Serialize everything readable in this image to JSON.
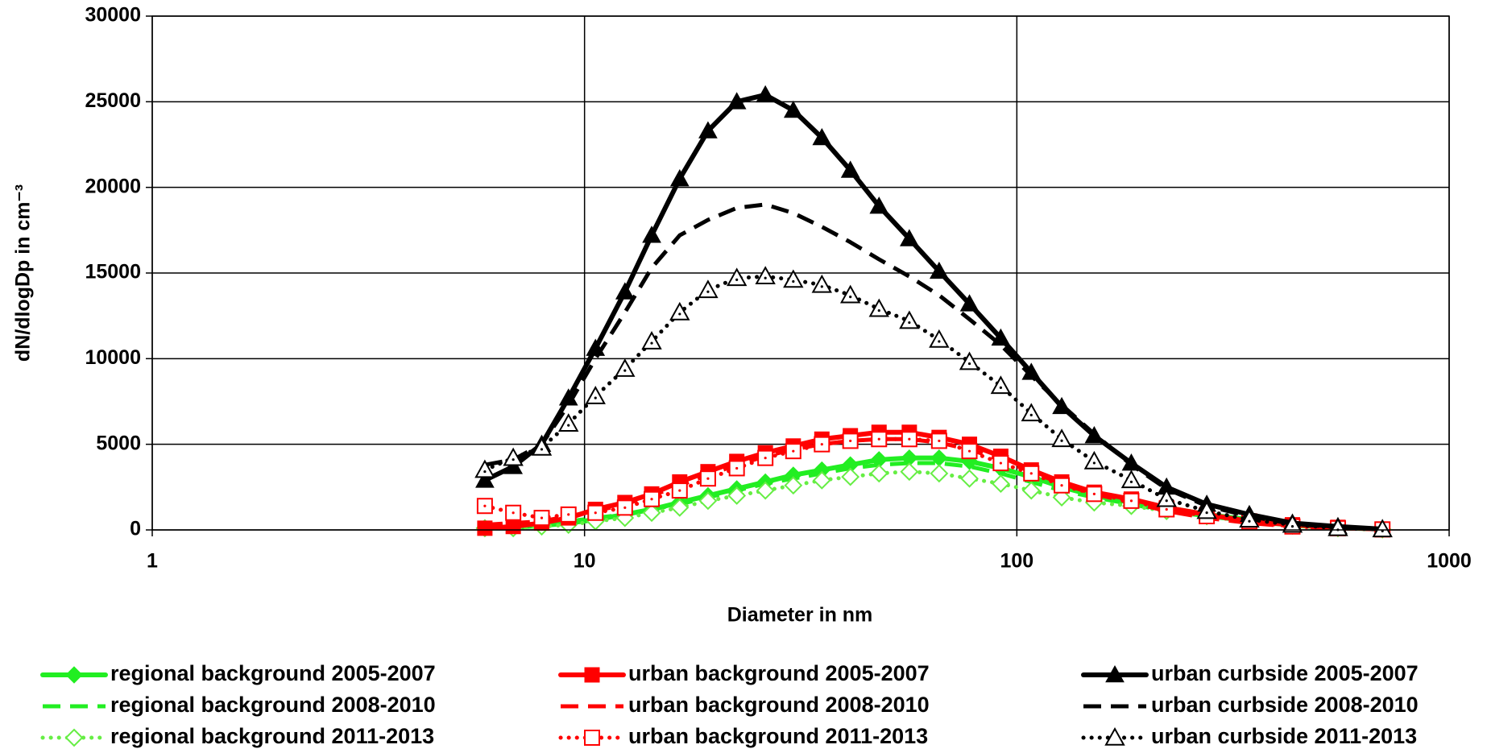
{
  "chart_data": {
    "type": "line",
    "xlabel": "Diameter in nm",
    "ylabel": "dN/dlogDp in cm⁻³",
    "xscale": "log",
    "xlim": [
      1,
      1000
    ],
    "xticks": [
      1,
      10,
      100,
      1000
    ],
    "ylim": [
      0,
      30000
    ],
    "yticks": [
      0,
      5000,
      10000,
      15000,
      20000,
      25000,
      30000
    ],
    "grid": true,
    "legend": "bottom",
    "x": [
      5.88,
      6.84,
      7.96,
      9.18,
      10.6,
      12.4,
      14.3,
      16.6,
      19.3,
      22.5,
      26.2,
      30.4,
      35.4,
      41.2,
      48.0,
      56.4,
      66.1,
      77.7,
      91.8,
      108,
      127,
      151,
      184,
      222,
      275,
      345,
      434,
      553,
      701
    ],
    "series": [
      {
        "name": "regional background 2005-2007",
        "color": "#22ee22",
        "line_style": "solid",
        "marker": "diamond",
        "marker_fill": "filled",
        "values": [
          100,
          150,
          250,
          400,
          600,
          900,
          1200,
          1600,
          2000,
          2400,
          2800,
          3200,
          3500,
          3800,
          4100,
          4200,
          4200,
          4000,
          3600,
          3100,
          2500,
          2000,
          1600,
          1300,
          900,
          600,
          300,
          150,
          50
        ]
      },
      {
        "name": "regional background 2008-2010",
        "color": "#22ee22",
        "line_style": "dashed",
        "marker": "none",
        "marker_fill": "none",
        "values": [
          300,
          300,
          300,
          500,
          700,
          900,
          1200,
          1500,
          1900,
          2300,
          2700,
          3000,
          3300,
          3600,
          3800,
          3900,
          3900,
          3700,
          3300,
          2800,
          2300,
          1900,
          1500,
          1100,
          800,
          500,
          250,
          100,
          30
        ]
      },
      {
        "name": "regional background 2011-2013",
        "color": "#66ee44",
        "line_style": "dotted",
        "marker": "diamond",
        "marker_fill": "open",
        "values": [
          100,
          100,
          200,
          300,
          500,
          700,
          1000,
          1300,
          1700,
          2000,
          2300,
          2600,
          2900,
          3100,
          3300,
          3400,
          3300,
          3000,
          2700,
          2300,
          1900,
          1600,
          1400,
          1100,
          800,
          500,
          250,
          100,
          30
        ]
      },
      {
        "name": "urban background 2005-2007",
        "color": "#ff0000",
        "line_style": "solid",
        "marker": "square",
        "marker_fill": "filled",
        "values": [
          100,
          200,
          400,
          700,
          1200,
          1600,
          2100,
          2800,
          3400,
          4000,
          4500,
          4900,
          5300,
          5500,
          5700,
          5700,
          5400,
          5000,
          4300,
          3500,
          2800,
          2200,
          1800,
          1300,
          900,
          500,
          300,
          150,
          50
        ]
      },
      {
        "name": "urban background 2008-2010",
        "color": "#ff0000",
        "line_style": "dashed",
        "marker": "none",
        "marker_fill": "none",
        "values": [
          300,
          400,
          500,
          800,
          1100,
          1500,
          2000,
          2600,
          3200,
          3800,
          4300,
          4700,
          5000,
          5200,
          5300,
          5300,
          5100,
          4700,
          4100,
          3400,
          2700,
          2100,
          1600,
          1100,
          700,
          400,
          200,
          100,
          30
        ]
      },
      {
        "name": "urban background 2011-2013",
        "color": "#ff0000",
        "line_style": "dotted",
        "marker": "square",
        "marker_fill": "open",
        "values": [
          1400,
          1000,
          700,
          900,
          1000,
          1300,
          1800,
          2300,
          3000,
          3600,
          4200,
          4600,
          5000,
          5200,
          5300,
          5300,
          5200,
          4600,
          3900,
          3300,
          2600,
          2100,
          1700,
          1200,
          800,
          500,
          200,
          100,
          30
        ]
      },
      {
        "name": "urban curbside 2005-2007",
        "color": "#000000",
        "line_style": "solid",
        "marker": "triangle",
        "marker_fill": "filled",
        "values": [
          2900,
          3700,
          5000,
          7700,
          10600,
          13900,
          17200,
          20500,
          23300,
          25000,
          25400,
          24500,
          22900,
          21000,
          18900,
          17000,
          15100,
          13200,
          11200,
          9200,
          7200,
          5500,
          3900,
          2500,
          1500,
          900,
          400,
          200,
          50
        ]
      },
      {
        "name": "urban curbside 2008-2010",
        "color": "#000000",
        "line_style": "dashed",
        "marker": "none",
        "marker_fill": "none",
        "values": [
          3800,
          4100,
          5000,
          7300,
          10000,
          12700,
          15300,
          17200,
          18100,
          18800,
          19000,
          18500,
          17700,
          16800,
          15800,
          14800,
          13700,
          12300,
          10800,
          9000,
          7300,
          5600,
          3800,
          2400,
          1400,
          800,
          350,
          150,
          40
        ]
      },
      {
        "name": "urban curbside 2011-2013",
        "color": "#000000",
        "line_style": "dotted",
        "marker": "triangle",
        "marker_fill": "open",
        "values": [
          3500,
          4200,
          4800,
          6200,
          7800,
          9400,
          11000,
          12700,
          14000,
          14700,
          14800,
          14600,
          14300,
          13700,
          12900,
          12200,
          11100,
          9800,
          8400,
          6800,
          5300,
          4000,
          2900,
          1800,
          1100,
          600,
          300,
          100,
          30
        ]
      }
    ]
  }
}
